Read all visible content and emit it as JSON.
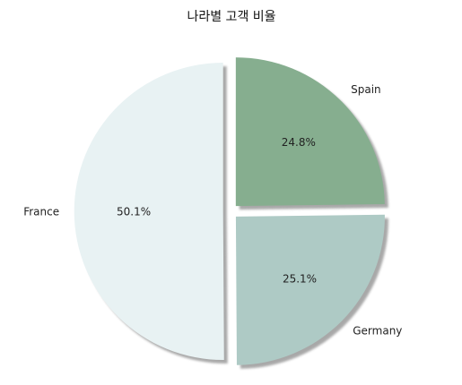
{
  "chart_data": {
    "type": "pie",
    "title": "나라별 고객 비율",
    "labels": [
      "Spain",
      "Germany",
      "France"
    ],
    "values": [
      24.8,
      25.1,
      50.1
    ],
    "percent_labels": [
      "24.8%",
      "25.1%",
      "50.1%"
    ],
    "colors": [
      "#86ae8f",
      "#aecac5",
      "#e8f2f3"
    ],
    "exploded": true,
    "shadow": true,
    "start_angle_deg": 90,
    "direction": "clockwise"
  }
}
